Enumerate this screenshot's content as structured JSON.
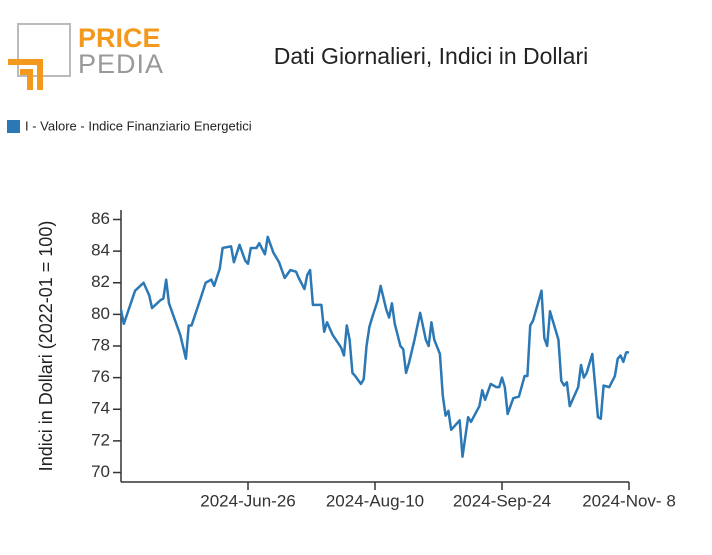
{
  "logo": {
    "top": "PRICE",
    "bottom": "PEDIA"
  },
  "chart_data": {
    "type": "line",
    "title": "Dati Giornalieri, Indici in Dollari",
    "y_label": "Indici in Dollari (2022-01 = 100)",
    "x": [
      "2024-05-12",
      "2024-05-13",
      "2024-05-17",
      "2024-05-20",
      "2024-05-22",
      "2024-05-23",
      "2024-05-26",
      "2024-05-27",
      "2024-05-28",
      "2024-05-29",
      "2024-06-02",
      "2024-06-04",
      "2024-06-05",
      "2024-06-06",
      "2024-06-09",
      "2024-06-11",
      "2024-06-13",
      "2024-06-14",
      "2024-06-16",
      "2024-06-17",
      "2024-06-20",
      "2024-06-21",
      "2024-06-23",
      "2024-06-25",
      "2024-06-26",
      "2024-06-27",
      "2024-06-29",
      "2024-06-30",
      "2024-07-02",
      "2024-07-03",
      "2024-07-05",
      "2024-07-07",
      "2024-07-09",
      "2024-07-11",
      "2024-07-13",
      "2024-07-14",
      "2024-07-16",
      "2024-07-17",
      "2024-07-18",
      "2024-07-19",
      "2024-07-22",
      "2024-07-23",
      "2024-07-24",
      "2024-07-26",
      "2024-07-29",
      "2024-07-30",
      "2024-07-31",
      "2024-08-01",
      "2024-08-02",
      "2024-08-03",
      "2024-08-05",
      "2024-08-06",
      "2024-08-07",
      "2024-08-08",
      "2024-08-09",
      "2024-08-11",
      "2024-08-12",
      "2024-08-14",
      "2024-08-15",
      "2024-08-16",
      "2024-08-17",
      "2024-08-19",
      "2024-08-20",
      "2024-08-21",
      "2024-08-22",
      "2024-08-24",
      "2024-08-26",
      "2024-08-28",
      "2024-08-29",
      "2024-08-30",
      "2024-08-31",
      "2024-09-02",
      "2024-09-03",
      "2024-09-04",
      "2024-09-05",
      "2024-09-06",
      "2024-09-09",
      "2024-09-10",
      "2024-09-12",
      "2024-09-13",
      "2024-09-16",
      "2024-09-17",
      "2024-09-18",
      "2024-09-20",
      "2024-09-22",
      "2024-09-23",
      "2024-09-24",
      "2024-09-25",
      "2024-09-26",
      "2024-09-28",
      "2024-09-30",
      "2024-10-02",
      "2024-10-03",
      "2024-10-04",
      "2024-10-05",
      "2024-10-08",
      "2024-10-09",
      "2024-10-10",
      "2024-10-11",
      "2024-10-14",
      "2024-10-15",
      "2024-10-16",
      "2024-10-17",
      "2024-10-18",
      "2024-10-21",
      "2024-10-22",
      "2024-10-23",
      "2024-10-24",
      "2024-10-26",
      "2024-10-28",
      "2024-10-29",
      "2024-10-30",
      "2024-11-01",
      "2024-11-03",
      "2024-11-04",
      "2024-11-05",
      "2024-11-06",
      "2024-11-07",
      "2024-11-08"
    ],
    "series": [
      {
        "name": "I - Valore - Indice Finanziario Energetici",
        "color": "#2b78b5",
        "values": [
          80.3,
          79.4,
          81.5,
          82.0,
          81.2,
          80.4,
          80.9,
          81.0,
          82.2,
          80.7,
          78.7,
          77.2,
          79.3,
          79.3,
          80.9,
          82.0,
          82.2,
          81.8,
          82.9,
          84.2,
          84.3,
          83.3,
          84.4,
          83.4,
          83.2,
          84.2,
          84.2,
          84.5,
          83.8,
          84.9,
          83.9,
          83.3,
          82.3,
          82.8,
          82.7,
          82.3,
          81.6,
          82.5,
          82.8,
          80.6,
          80.6,
          78.9,
          79.5,
          78.7,
          77.9,
          77.4,
          79.3,
          78.4,
          76.3,
          76.1,
          75.6,
          75.9,
          78.0,
          79.2,
          79.8,
          80.9,
          81.8,
          80.3,
          79.8,
          80.7,
          79.4,
          78.0,
          77.8,
          76.3,
          76.9,
          78.4,
          80.1,
          78.4,
          78.0,
          79.5,
          78.4,
          77.5,
          74.9,
          73.6,
          73.9,
          72.7,
          73.3,
          71.0,
          73.5,
          73.2,
          74.2,
          75.2,
          74.6,
          75.6,
          75.4,
          75.4,
          76.0,
          75.4,
          73.7,
          74.7,
          74.8,
          76.1,
          76.1,
          79.3,
          79.6,
          81.5,
          78.5,
          78.0,
          80.2,
          78.4,
          75.8,
          75.5,
          75.7,
          74.2,
          75.4,
          76.8,
          76.0,
          76.3,
          77.5,
          73.5,
          73.4,
          75.5,
          75.4,
          76.1,
          77.2,
          77.4,
          77.0,
          77.6,
          77.6
        ]
      }
    ],
    "xlim": [
      "2024-05-12",
      "2024-11-08"
    ],
    "xticks": [
      {
        "value": "2024-06-26",
        "label": "2024-Jun-26"
      },
      {
        "value": "2024-08-10",
        "label": "2024-Aug-10"
      },
      {
        "value": "2024-09-24",
        "label": "2024-Sep-24"
      },
      {
        "value": "2024-11-08",
        "label": "2024-Nov- 8"
      }
    ],
    "ylim": [
      69.4,
      86.6
    ],
    "yticks": [
      70,
      72,
      74,
      76,
      78,
      80,
      82,
      84,
      86
    ],
    "grid": false
  }
}
